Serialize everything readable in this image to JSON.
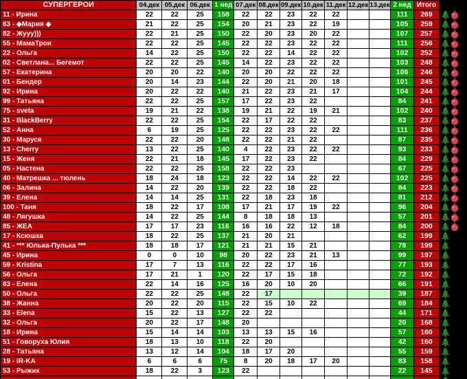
{
  "colors": {
    "red": "#C00000",
    "green": "#00A000",
    "light_green_highlight": "#CCFFCC",
    "header_gray": "#C0C0C0",
    "background": "#000000",
    "tree_green": "#2D8A2D",
    "ball_red": "#CF4250"
  },
  "table": {
    "columns": [
      {
        "label": "СУПЕРГЕРОИ",
        "type": "title"
      },
      {
        "label": "04.дек",
        "type": "date"
      },
      {
        "label": "05.дек",
        "type": "date"
      },
      {
        "label": "06.дек",
        "type": "date"
      },
      {
        "label": "1 нед",
        "type": "week"
      },
      {
        "label": "07.дек",
        "type": "date"
      },
      {
        "label": "08.дек",
        "type": "date"
      },
      {
        "label": "09.дек",
        "type": "date"
      },
      {
        "label": "10.дек",
        "type": "date"
      },
      {
        "label": "11.дек",
        "type": "date"
      },
      {
        "label": "12.дек",
        "type": "date"
      },
      {
        "label": "13.дек",
        "type": "date"
      },
      {
        "label": "2 нед",
        "type": "week"
      },
      {
        "label": "Итого",
        "type": "total"
      }
    ],
    "icon_names": {
      "tree": "christmas-tree",
      "ball": "ornament-ball"
    },
    "rows": [
      {
        "name": "11 - Ирина",
        "days": [
          "22",
          "22",
          "25"
        ],
        "week1": "158",
        "days2": [
          "22",
          "22",
          "23",
          "22",
          "22",
          "",
          ""
        ],
        "week2": "111",
        "total": "269",
        "ornament": true
      },
      {
        "name": "63 - ◆Мария ◆",
        "days": [
          "21",
          "22",
          "25"
        ],
        "week1": "154",
        "days2": [
          "20",
          "21",
          "23",
          "22",
          "19",
          "",
          ""
        ],
        "week2": "105",
        "total": "259",
        "ornament": true
      },
      {
        "name": "82 - Жууу)))",
        "days": [
          "22",
          "21",
          "25"
        ],
        "week1": "150",
        "days2": [
          "22",
          "20",
          "23",
          "20",
          "22",
          "",
          ""
        ],
        "week2": "107",
        "total": "257",
        "ornament": true
      },
      {
        "name": "55 - МамаТрои",
        "days": [
          "22",
          "22",
          "25"
        ],
        "week1": "145",
        "days2": [
          "22",
          "22",
          "23",
          "22",
          "22",
          "",
          ""
        ],
        "week2": "111",
        "total": "256",
        "ornament": true
      },
      {
        "name": "22 - Ольга",
        "days": [
          "14",
          "22",
          "25"
        ],
        "week1": "150",
        "days2": [
          "22",
          "22",
          "14",
          "22",
          "22",
          "",
          ""
        ],
        "week2": "102",
        "total": "252",
        "ornament": true
      },
      {
        "name": "02 - Светлана... Бегемот",
        "days": [
          "22",
          "22",
          "25"
        ],
        "week1": "145",
        "days2": [
          "14",
          "22",
          "23",
          "22",
          "22",
          "",
          ""
        ],
        "week2": "103",
        "total": "248",
        "ornament": true
      },
      {
        "name": "57 - Екатерина",
        "days": [
          "20",
          "20",
          "22"
        ],
        "week1": "140",
        "days2": [
          "20",
          "20",
          "22",
          "22",
          "22",
          "",
          ""
        ],
        "week2": "106",
        "total": "246",
        "ornament": true
      },
      {
        "name": "01 - Бендер",
        "days": [
          "20",
          "14",
          "23"
        ],
        "week1": "144",
        "days2": [
          "22",
          "20",
          "21",
          "20",
          "18",
          "",
          ""
        ],
        "week2": "101",
        "total": "245",
        "ornament": true
      },
      {
        "name": "92 - Ирина",
        "days": [
          "20",
          "22",
          "22"
        ],
        "week1": "140",
        "days2": [
          "21",
          "22",
          "23",
          "21",
          "17",
          "",
          ""
        ],
        "week2": "104",
        "total": "244",
        "ornament": true
      },
      {
        "name": "99 - Татьяна",
        "days": [
          "22",
          "22",
          "25"
        ],
        "week1": "157",
        "days2": [
          "17",
          "22",
          "23",
          "22",
          "",
          "",
          ""
        ],
        "week2": "84",
        "total": "241",
        "ornament": true
      },
      {
        "name": "75 - sveta",
        "days": [
          "19",
          "21",
          "22"
        ],
        "week1": "138",
        "days2": [
          "19",
          "21",
          "22",
          "19",
          "21",
          "",
          ""
        ],
        "week2": "102",
        "total": "240",
        "ornament": true
      },
      {
        "name": "31 - BlackBerry",
        "days": [
          "22",
          "22",
          "25"
        ],
        "week1": "154",
        "days2": [
          "22",
          "17",
          "22",
          "22",
          "",
          "",
          ""
        ],
        "week2": "83",
        "total": "237",
        "ornament": true
      },
      {
        "name": "52 - Анна",
        "days": [
          "6",
          "19",
          "25"
        ],
        "week1": "125",
        "days2": [
          "22",
          "22",
          "23",
          "22",
          "22",
          "",
          ""
        ],
        "week2": "111",
        "total": "236",
        "ornament": true
      },
      {
        "name": "30 - Маруся",
        "days": [
          "22",
          "22",
          "20"
        ],
        "week1": "148",
        "days2": [
          "22",
          "22",
          "21",
          "22",
          "",
          "",
          ""
        ],
        "week2": "87",
        "total": "235",
        "ornament": true
      },
      {
        "name": "13 - Cherry",
        "days": [
          "13",
          "22",
          "25"
        ],
        "week1": "140",
        "days2": [
          "4",
          "22",
          "23",
          "22",
          "22",
          "",
          ""
        ],
        "week2": "93",
        "total": "233",
        "ornament": true
      },
      {
        "name": "15 - Женя",
        "days": [
          "22",
          "21",
          "18"
        ],
        "week1": "145",
        "days2": [
          "17",
          "22",
          "23",
          "22",
          "",
          "",
          ""
        ],
        "week2": "84",
        "total": "229",
        "ornament": true
      },
      {
        "name": "05 - Настена",
        "days": [
          "22",
          "22",
          "25"
        ],
        "week1": "158",
        "days2": [
          "22",
          "22",
          "23",
          "",
          "",
          "",
          ""
        ],
        "week2": "67",
        "total": "225",
        "ornament": true
      },
      {
        "name": "40 - Матрешка ... тюлень",
        "days": [
          "18",
          "24",
          "18"
        ],
        "week1": "123",
        "days2": [
          "22",
          "22",
          "14",
          "22",
          "22",
          "",
          ""
        ],
        "week2": "102",
        "total": "225",
        "ornament": true
      },
      {
        "name": "06 - Залина",
        "days": [
          "14",
          "22",
          "20"
        ],
        "week1": "139",
        "days2": [
          "22",
          "22",
          "18",
          "22",
          "",
          "",
          ""
        ],
        "week2": "84",
        "total": "223",
        "ornament": true
      },
      {
        "name": "39 - Елена",
        "days": [
          "14",
          "14",
          "25"
        ],
        "week1": "131",
        "days2": [
          "22",
          "18",
          "23",
          "18",
          "",
          "",
          ""
        ],
        "week2": "81",
        "total": "212",
        "ornament": true
      },
      {
        "name": "100 - Таня",
        "days": [
          "18",
          "22",
          "17"
        ],
        "week1": "108",
        "days2": [
          "17",
          "21",
          "17",
          "19",
          "22",
          "",
          ""
        ],
        "week2": "96",
        "total": "204",
        "ornament": true
      },
      {
        "name": "48 - Лягушка",
        "days": [
          "14",
          "22",
          "25"
        ],
        "week1": "144",
        "days2": [
          "8",
          "18",
          "18",
          "13",
          "",
          "",
          ""
        ],
        "week2": "57",
        "total": "201",
        "ornament": true
      },
      {
        "name": "85 - ЖЕА",
        "days": [
          "17",
          "17",
          "23"
        ],
        "week1": "116",
        "days2": [
          "16",
          "16",
          "22",
          "12",
          "18",
          "",
          ""
        ],
        "week2": "84",
        "total": "200",
        "ornament": true
      },
      {
        "name": "17 - Ксюшка",
        "days": [
          "18",
          "22",
          "25"
        ],
        "week1": "137",
        "days2": [
          "21",
          "20",
          "21",
          "",
          "",
          "",
          ""
        ],
        "week2": "62",
        "total": "199",
        "ornament": false
      },
      {
        "name": "41 - *** Юлька-Пулька ***",
        "days": [
          "18",
          "18",
          "17"
        ],
        "week1": "121",
        "days2": [
          "21",
          "21",
          "15",
          "21",
          "",
          "",
          ""
        ],
        "week2": "78",
        "total": "199",
        "ornament": false
      },
      {
        "name": "45 - Ирина",
        "days": [
          "0",
          "0",
          "10"
        ],
        "week1": "98",
        "days2": [
          "20",
          "22",
          "23",
          "21",
          "13",
          "",
          ""
        ],
        "week2": "99",
        "total": "197",
        "ornament": false
      },
      {
        "name": "59 - Kristina",
        "days": [
          "17",
          "7",
          "13"
        ],
        "week1": "116",
        "days2": [
          "22",
          "22",
          "17",
          "16",
          "",
          "",
          ""
        ],
        "week2": "77",
        "total": "193",
        "ornament": false
      },
      {
        "name": "56 - Ольга",
        "days": [
          "17",
          "21",
          "1"
        ],
        "week1": "120",
        "days2": [
          "22",
          "17",
          "15",
          "18",
          "",
          "",
          ""
        ],
        "week2": "72",
        "total": "192",
        "ornament": false
      },
      {
        "name": "83 - Елена",
        "days": [
          "22",
          "14",
          "16"
        ],
        "week1": "125",
        "days2": [
          "16",
          "20",
          "10",
          "20",
          "",
          "",
          ""
        ],
        "week2": "66",
        "total": "191",
        "ornament": false
      },
      {
        "name": "50 - Ольга",
        "days": [
          "22",
          "22",
          "25"
        ],
        "week1": "148",
        "days2": [
          "22",
          "17",
          "",
          "",
          "",
          "",
          ""
        ],
        "week2": "39",
        "total": "187",
        "ornament": false,
        "highlight_from": 1
      },
      {
        "name": "38 - Жанна",
        "days": [
          "20",
          "22",
          "20"
        ],
        "week1": "115",
        "days2": [
          "22",
          "15",
          "10",
          "22",
          "",
          "",
          ""
        ],
        "week2": "69",
        "total": "184",
        "ornament": false
      },
      {
        "name": "33 - Elena",
        "days": [
          "15",
          "22",
          "13"
        ],
        "week1": "127",
        "days2": [
          "22",
          "22",
          "",
          "",
          "",
          "",
          ""
        ],
        "week2": "44",
        "total": "171",
        "ornament": false
      },
      {
        "name": "32 - Ольга",
        "days": [
          "20",
          "22",
          "17"
        ],
        "week1": "148",
        "days2": [
          "20",
          "",
          "",
          "",
          "",
          "",
          ""
        ],
        "week2": "20",
        "total": "168",
        "ornament": false
      },
      {
        "name": "18 - Ирина",
        "days": [
          "15",
          "14",
          "14"
        ],
        "week1": "103",
        "days2": [
          "13",
          "13",
          "15",
          "16",
          "",
          "",
          ""
        ],
        "week2": "57",
        "total": "160",
        "ornament": false
      },
      {
        "name": "51 - Говоруха Юлия",
        "days": [
          "18",
          "13",
          "10"
        ],
        "week1": "118",
        "days2": [
          "22",
          "20",
          "",
          "",
          "",
          "",
          ""
        ],
        "week2": "42",
        "total": "160",
        "ornament": false
      },
      {
        "name": "28 - Татьяна",
        "days": [
          "13",
          "12",
          "14"
        ],
        "week1": "104",
        "days2": [
          "18",
          "17",
          "20",
          "",
          "",
          "",
          ""
        ],
        "week2": "55",
        "total": "159",
        "ornament": false
      },
      {
        "name": "19 - IR-KA",
        "days": [
          "6",
          "6",
          "6"
        ],
        "week1": "75",
        "days2": [
          "8",
          "20",
          "18",
          "17",
          "20",
          "",
          ""
        ],
        "week2": "83",
        "total": "158",
        "ornament": false
      },
      {
        "name": "53 - Рыжик",
        "days": [
          "18",
          "22",
          "3"
        ],
        "week1": "123",
        "days2": [
          "22",
          "",
          "",
          "",
          "",
          "",
          ""
        ],
        "week2": "22",
        "total": "145",
        "ornament": false
      },
      {
        "name": "",
        "days": [
          "",
          "",
          ""
        ],
        "week1": "",
        "days2": [
          "",
          "",
          "",
          "",
          "",
          "",
          ""
        ],
        "week2": "",
        "total": "",
        "ornament": false,
        "partial": true
      }
    ]
  }
}
